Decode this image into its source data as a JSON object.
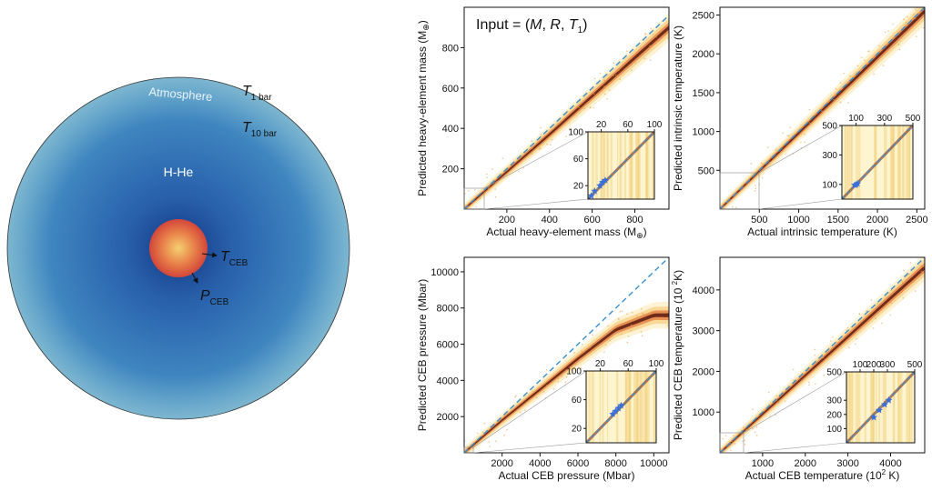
{
  "planet": {
    "atmosphere_label": "Atmosphere",
    "envelope_label": "H-He",
    "t1bar": {
      "main": "T",
      "sub": "1 bar"
    },
    "t10bar": {
      "main": "T",
      "sub": "10 bar"
    },
    "tceb": {
      "main": "T",
      "sub": "CEB"
    },
    "pceb": {
      "main": "P",
      "sub": "CEB"
    },
    "colors": {
      "outer": "#79b3cc",
      "inner": "#2860a8",
      "core_center": "#f2c060",
      "core_edge": "#d8503a"
    }
  },
  "input_label": {
    "prefix": "Input = (",
    "M": "M",
    "R": "R",
    "T": "T",
    "T_sub": "1",
    "suffix": ")"
  },
  "chart_data": [
    {
      "id": "mass",
      "type": "scatter",
      "xlabel": "Actual heavy-element mass (M",
      "xlabel_sub": "⊕",
      "xlabel_end": ")",
      "ylabel": "Predicted heavy-element mass (M",
      "ylabel_sub": "⊕",
      "ylabel_end": ")",
      "xlim": [
        0,
        960
      ],
      "ylim": [
        0,
        1000
      ],
      "xticks": [
        200,
        400,
        600,
        800
      ],
      "yticks": [
        200,
        400,
        600,
        800
      ],
      "band": [
        [
          0,
          0
        ],
        [
          200,
          185
        ],
        [
          400,
          370
        ],
        [
          600,
          560
        ],
        [
          800,
          750
        ],
        [
          960,
          900
        ]
      ],
      "inset": {
        "xlim": [
          0,
          100
        ],
        "ylim": [
          0,
          100
        ],
        "xticks": [
          20,
          60,
          100
        ],
        "yticks": [
          20,
          60,
          100
        ],
        "points": [
          [
            5,
            5
          ],
          [
            10,
            12
          ],
          [
            18,
            20
          ],
          [
            22,
            25
          ],
          [
            26,
            28
          ]
        ]
      }
    },
    {
      "id": "temp",
      "type": "scatter",
      "xlabel": "Actual intrinsic temperature (K)",
      "ylabel": "Predicted intrinsic temperature (K)",
      "xlim": [
        0,
        2600
      ],
      "ylim": [
        0,
        2600
      ],
      "xticks": [
        500,
        1000,
        1500,
        2000,
        2500
      ],
      "yticks": [
        500,
        1000,
        1500,
        2000,
        2500
      ],
      "band": [
        [
          0,
          0
        ],
        [
          500,
          490
        ],
        [
          1000,
          980
        ],
        [
          1500,
          1470
        ],
        [
          2000,
          1960
        ],
        [
          2600,
          2550
        ]
      ],
      "inset": {
        "xlim": [
          0,
          500
        ],
        "ylim": [
          0,
          500
        ],
        "xticks": [
          100,
          300,
          500
        ],
        "yticks": [
          100,
          300,
          500
        ],
        "points": [
          [
            90,
            95
          ],
          [
            100,
            98
          ],
          [
            110,
            105
          ]
        ]
      }
    },
    {
      "id": "pressure",
      "type": "scatter",
      "xlabel": "Actual CEB pressure (Mbar)",
      "ylabel": "Predicted CEB pressure (Mbar)",
      "xlim": [
        0,
        10800
      ],
      "ylim": [
        0,
        10800
      ],
      "xticks": [
        2000,
        4000,
        6000,
        8000,
        10000
      ],
      "yticks": [
        2000,
        4000,
        6000,
        8000,
        10000
      ],
      "band": [
        [
          0,
          0
        ],
        [
          2000,
          1800
        ],
        [
          4000,
          3500
        ],
        [
          6000,
          5200
        ],
        [
          8000,
          6800
        ],
        [
          10000,
          7600
        ]
      ],
      "inset": {
        "xlim": [
          0,
          100
        ],
        "ylim": [
          0,
          100
        ],
        "xticks": [
          20,
          60,
          100
        ],
        "yticks": [
          20,
          60,
          100
        ],
        "points": [
          [
            38,
            40
          ],
          [
            42,
            44
          ],
          [
            46,
            48
          ],
          [
            50,
            52
          ]
        ]
      }
    },
    {
      "id": "cebtemp",
      "type": "scatter",
      "xlabel": "Actual CEB temperature (10",
      "xlabel_sup": "2",
      "xlabel_end": " K)",
      "ylabel": "Predicted CEB temperature (10 ",
      "ylabel_sup": "2",
      "ylabel_end": "K)",
      "xlim": [
        0,
        4800
      ],
      "ylim": [
        0,
        4800
      ],
      "xticks": [
        1000,
        2000,
        3000,
        4000
      ],
      "yticks": [
        1000,
        2000,
        3000,
        4000
      ],
      "band": [
        [
          0,
          0
        ],
        [
          1000,
          950
        ],
        [
          2000,
          1900
        ],
        [
          3000,
          2850
        ],
        [
          4000,
          3800
        ],
        [
          4800,
          4550
        ]
      ],
      "inset": {
        "xlim": [
          0,
          500
        ],
        "ylim": [
          0,
          500
        ],
        "xticks": [
          100,
          200,
          300,
          500
        ],
        "yticks": [
          100,
          200,
          300,
          500
        ],
        "points": [
          [
            200,
            180
          ],
          [
            240,
            230
          ],
          [
            280,
            270
          ],
          [
            310,
            300
          ]
        ]
      }
    }
  ]
}
